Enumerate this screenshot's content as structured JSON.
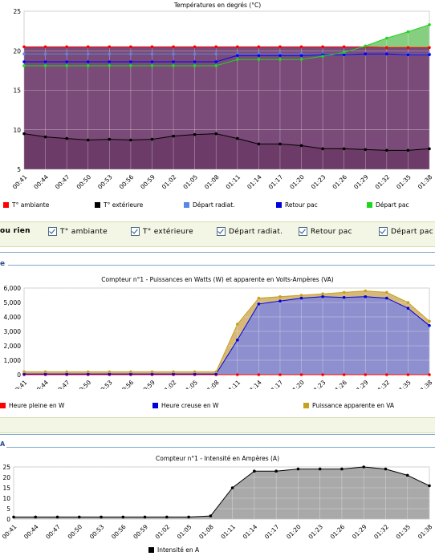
{
  "time_labels": [
    "00:41",
    "00:44",
    "00:47",
    "00:50",
    "00:53",
    "00:56",
    "00:59",
    "01:02",
    "01:05",
    "01:08",
    "01:11",
    "01:14",
    "01:17",
    "01:20",
    "01:23",
    "01:26",
    "01:29",
    "01:32",
    "01:35",
    "01:38"
  ],
  "chart_data": [
    {
      "type": "area",
      "title": "Températures en degrés (°C)",
      "xlabel": "",
      "ylabel": "",
      "ylim": [
        5,
        25
      ],
      "yticks": [
        5,
        10,
        15,
        20,
        25
      ],
      "grid": true,
      "legend_position": "bottom",
      "x": [
        "00:41",
        "00:44",
        "00:47",
        "00:50",
        "00:53",
        "00:56",
        "00:59",
        "01:02",
        "01:05",
        "01:08",
        "01:11",
        "01:14",
        "01:17",
        "01:20",
        "01:23",
        "01:26",
        "01:29",
        "01:32",
        "01:35",
        "01:38"
      ],
      "series": [
        {
          "name": "T° ambiante",
          "color": "#ff0000",
          "values": [
            20.5,
            20.5,
            20.5,
            20.5,
            20.5,
            20.5,
            20.5,
            20.5,
            20.5,
            20.5,
            20.5,
            20.5,
            20.5,
            20.5,
            20.5,
            20.5,
            20.5,
            20.4,
            20.4,
            20.4
          ]
        },
        {
          "name": "T° extérieure",
          "color": "#000000",
          "values": [
            9.5,
            9.1,
            8.9,
            8.7,
            8.8,
            8.7,
            8.8,
            9.2,
            9.4,
            9.5,
            8.9,
            8.2,
            8.2,
            8.0,
            7.6,
            7.6,
            7.5,
            7.4,
            7.4,
            7.6
          ]
        },
        {
          "name": "Départ radiat.",
          "color": "#5b86e5",
          "values": [
            19.6,
            19.6,
            19.6,
            19.6,
            19.6,
            19.6,
            19.6,
            19.6,
            19.6,
            19.6,
            19.6,
            19.6,
            19.6,
            19.6,
            19.6,
            19.6,
            19.6,
            19.6,
            19.6,
            19.6
          ]
        },
        {
          "name": "Retour pac",
          "color": "#0000ff",
          "values": [
            18.6,
            18.6,
            18.6,
            18.6,
            18.6,
            18.6,
            18.6,
            18.6,
            18.6,
            18.6,
            19.4,
            19.4,
            19.4,
            19.4,
            19.5,
            19.5,
            19.6,
            19.6,
            19.5,
            19.5
          ]
        },
        {
          "name": "Départ pac",
          "color": "#1ed61e",
          "values": [
            18.1,
            18.1,
            18.1,
            18.1,
            18.1,
            18.1,
            18.1,
            18.1,
            18.1,
            18.1,
            18.9,
            18.9,
            18.9,
            18.9,
            19.3,
            19.8,
            20.6,
            21.6,
            22.4,
            23.3
          ]
        }
      ]
    },
    {
      "type": "area",
      "title": "Compteur n°1 - Puissances en Watts (W) et apparente en Volts-Ampères (VA)",
      "xlabel": "",
      "ylabel": "",
      "ylim": [
        0,
        6000
      ],
      "yticks": [
        0,
        1000,
        2000,
        3000,
        4000,
        5000,
        6000
      ],
      "grid": true,
      "legend_position": "bottom",
      "x": [
        "00:41",
        "00:44",
        "00:47",
        "00:50",
        "00:53",
        "00:56",
        "00:59",
        "01:02",
        "01:05",
        "01:08",
        "01:11",
        "01:14",
        "01:17",
        "01:20",
        "01:23",
        "01:26",
        "01:29",
        "01:32",
        "01:35",
        "01:38"
      ],
      "series": [
        {
          "name": "Heure pleine en W",
          "color": "#ff0000",
          "values": [
            0,
            0,
            0,
            0,
            0,
            0,
            0,
            0,
            0,
            0,
            0,
            0,
            0,
            0,
            0,
            0,
            0,
            0,
            0,
            0
          ]
        },
        {
          "name": "Heure creuse en W",
          "color": "#0000dd",
          "values": [
            50,
            50,
            50,
            50,
            50,
            50,
            50,
            50,
            50,
            50,
            2400,
            4900,
            5100,
            5300,
            5400,
            5350,
            5400,
            5300,
            4600,
            3400
          ]
        },
        {
          "name": "Puissance apparente en VA",
          "color": "#c8a020",
          "values": [
            200,
            200,
            200,
            200,
            200,
            200,
            200,
            200,
            200,
            200,
            3500,
            5300,
            5400,
            5500,
            5600,
            5700,
            5800,
            5700,
            5000,
            3700
          ]
        }
      ]
    },
    {
      "type": "area",
      "title": "Compteur n°1 - Intensité en Ampères (A)",
      "xlabel": "",
      "ylabel": "",
      "ylim": [
        0,
        25
      ],
      "yticks": [
        0,
        5,
        10,
        15,
        20,
        25
      ],
      "grid": true,
      "legend_position": "bottom",
      "x": [
        "00:41",
        "00:44",
        "00:47",
        "00:50",
        "00:53",
        "00:56",
        "00:59",
        "01:02",
        "01:05",
        "01:08",
        "01:11",
        "01:14",
        "01:17",
        "01:20",
        "01:23",
        "01:26",
        "01:29",
        "01:32",
        "01:35",
        "01:38"
      ],
      "series": [
        {
          "name": "Intensité en A",
          "color": "#000000",
          "values": [
            1,
            1,
            1,
            1,
            1,
            1,
            1,
            1,
            1,
            1.5,
            15,
            23,
            23,
            24,
            24,
            24,
            25,
            24,
            21,
            16
          ]
        }
      ]
    }
  ],
  "legend1": [
    "T° ambiante",
    "T° extérieure",
    "Départ radiat.",
    "Retour pac",
    "Départ pac"
  ],
  "strip1": {
    "left_text": "ou rien",
    "checkboxes": [
      "T° ambiante",
      "T° extérieure",
      "Départ radiat.",
      "Retour pac",
      "Départ pac"
    ]
  },
  "section_label_1": "e",
  "section_label_2": "A",
  "legend2": [
    "Heure pleine en W",
    "Heure creuse en W",
    "Puissance apparente en VA"
  ],
  "legend3": [
    "Intensité en A"
  ],
  "colors": {
    "plot_purple": "#7a4a78",
    "plot_purple_dark": "#6c3b68",
    "power_fill": "#8e8fce",
    "power_apparent_fill": "#d6b978",
    "current_fill": "#a9a9a9",
    "gridline": "#ffffff"
  }
}
